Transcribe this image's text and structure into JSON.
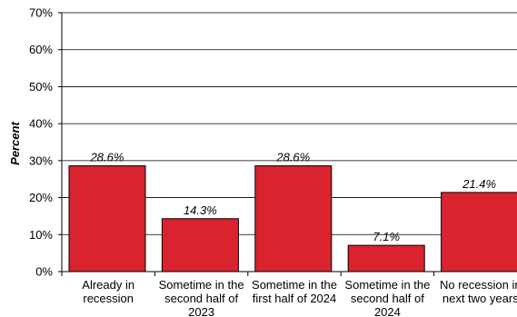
{
  "chart_data": {
    "type": "bar",
    "title": "",
    "xlabel": "",
    "ylabel": "Percent",
    "categories": [
      [
        "Already in",
        "recession"
      ],
      [
        "Sometime in the",
        "second half of",
        "2023"
      ],
      [
        "Sometime in the",
        "first half of 2024"
      ],
      [
        "Sometime in the",
        "second half of",
        "2024"
      ],
      [
        "No recession in",
        "next two years"
      ]
    ],
    "values": [
      28.6,
      14.3,
      28.6,
      7.1,
      21.4
    ],
    "data_labels": [
      "28.6%",
      "14.3%",
      "28.6%",
      "7.1%",
      "21.4%"
    ],
    "ylim": [
      0,
      70
    ],
    "yticks": [
      0,
      10,
      20,
      30,
      40,
      50,
      60,
      70
    ],
    "ytick_labels": [
      "0%",
      "10%",
      "20%",
      "30%",
      "40%",
      "50%",
      "60%",
      "70%"
    ],
    "grid": true,
    "legend": "none",
    "colors": {
      "bar": "#d9232e",
      "bar_edge": "#000000",
      "grid": "#000000"
    }
  }
}
